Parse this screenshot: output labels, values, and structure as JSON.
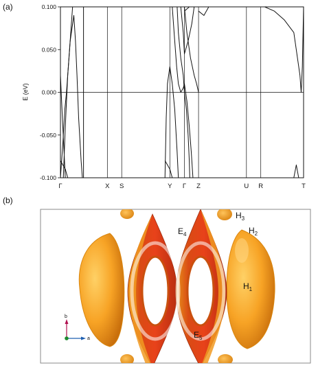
{
  "panel_a": {
    "label": "(a)",
    "chart_data": {
      "type": "line",
      "title": "",
      "ylabel": "E (eV)",
      "xlabel": "",
      "ylim": [
        -0.1,
        0.1
      ],
      "yticks": [
        0.1,
        0.05,
        0.0,
        -0.05,
        -0.1
      ],
      "ytick_labels": [
        "0.100",
        "0.050",
        "0.000",
        "-0.050",
        "-0.100"
      ],
      "xlim": [
        0,
        10
      ],
      "kpoints": [
        {
          "label": "Γ",
          "x": 0
        },
        {
          "label": "X",
          "x": 1.93
        },
        {
          "label": "S",
          "x": 2.52
        },
        {
          "label": "Y",
          "x": 4.5
        },
        {
          "label": "Γ",
          "x": 5.1
        },
        {
          "label": "Z",
          "x": 5.68
        },
        {
          "label": "U",
          "x": 7.65
        },
        {
          "label": "R",
          "x": 8.24
        },
        {
          "label": "T",
          "x": 10
        }
      ],
      "fermi_level": 0.0,
      "grid": false,
      "series": [
        {
          "values": [
            [
              0.0,
              -0.1
            ],
            [
              0.1,
              -0.06
            ],
            [
              0.18,
              -0.02
            ],
            [
              0.25,
              0.0
            ],
            [
              0.35,
              0.04
            ],
            [
              0.45,
              0.08
            ],
            [
              0.5,
              0.1
            ]
          ]
        },
        {
          "values": [
            [
              0.0,
              0.02
            ],
            [
              0.08,
              -0.03
            ],
            [
              0.15,
              -0.07
            ],
            [
              0.2,
              -0.1
            ]
          ]
        },
        {
          "values": [
            [
              0.12,
              -0.1
            ],
            [
              0.2,
              -0.04
            ],
            [
              0.3,
              0.02
            ],
            [
              0.4,
              0.06
            ],
            [
              0.55,
              0.09
            ],
            [
              0.62,
              0.06
            ],
            [
              0.68,
              0.02
            ],
            [
              0.75,
              -0.03
            ],
            [
              0.85,
              -0.08
            ],
            [
              0.9,
              -0.1
            ]
          ]
        },
        {
          "values": [
            [
              0.0,
              -0.08
            ],
            [
              0.1,
              -0.085
            ],
            [
              0.2,
              -0.09
            ],
            [
              0.3,
              -0.1
            ]
          ]
        },
        {
          "values": [
            [
              0.95,
              -0.1
            ],
            [
              0.95,
              0.1
            ]
          ]
        },
        {
          "values": [
            [
              4.3,
              -0.1
            ],
            [
              4.35,
              -0.03
            ],
            [
              4.4,
              0.01
            ],
            [
              4.5,
              0.03
            ],
            [
              4.6,
              0.01
            ],
            [
              4.7,
              -0.02
            ],
            [
              4.8,
              -0.07
            ],
            [
              4.85,
              -0.1
            ]
          ]
        },
        {
          "values": [
            [
              4.3,
              -0.08
            ],
            [
              4.4,
              -0.085
            ],
            [
              4.5,
              -0.09
            ],
            [
              4.6,
              -0.1
            ]
          ]
        },
        {
          "values": [
            [
              4.6,
              0.1
            ],
            [
              4.7,
              0.06
            ],
            [
              4.78,
              0.03
            ],
            [
              4.85,
              0.01
            ],
            [
              4.95,
              0.0
            ],
            [
              5.05,
              0.005
            ],
            [
              5.1,
              0.01
            ],
            [
              5.2,
              -0.01
            ],
            [
              5.3,
              -0.04
            ],
            [
              5.38,
              -0.07
            ],
            [
              5.45,
              -0.1
            ]
          ]
        },
        {
          "values": [
            [
              4.8,
              0.1
            ],
            [
              4.85,
              0.07
            ],
            [
              4.95,
              0.04
            ],
            [
              5.05,
              0.02
            ],
            [
              5.1,
              0.0
            ],
            [
              5.18,
              -0.02
            ],
            [
              5.25,
              -0.05
            ],
            [
              5.3,
              -0.08
            ],
            [
              5.32,
              -0.1
            ]
          ]
        },
        {
          "values": [
            [
              4.95,
              0.1
            ],
            [
              5.05,
              0.07
            ],
            [
              5.1,
              0.045
            ],
            [
              5.25,
              0.06
            ],
            [
              5.4,
              0.08
            ],
            [
              5.5,
              0.1
            ]
          ]
        },
        {
          "values": [
            [
              5.1,
              0.1
            ],
            [
              5.2,
              0.07
            ],
            [
              5.35,
              0.04
            ],
            [
              5.5,
              0.02
            ],
            [
              5.6,
              0.01
            ],
            [
              5.68,
              0.0
            ]
          ]
        },
        {
          "values": [
            [
              5.1,
              0.095
            ],
            [
              5.3,
              0.1
            ]
          ]
        },
        {
          "values": [
            [
              5.68,
              0.095
            ],
            [
              5.9,
              0.09
            ],
            [
              6.1,
              0.1
            ]
          ]
        },
        {
          "values": [
            [
              8.4,
              0.1
            ],
            [
              8.8,
              0.095
            ],
            [
              9.2,
              0.085
            ],
            [
              9.6,
              0.07
            ],
            [
              9.85,
              0.02
            ],
            [
              9.9,
              0.0
            ],
            [
              9.95,
              0.03
            ],
            [
              10.0,
              0.1
            ]
          ]
        },
        {
          "values": [
            [
              9.6,
              -0.1
            ],
            [
              9.7,
              -0.085
            ],
            [
              9.8,
              -0.1
            ]
          ]
        }
      ]
    }
  },
  "panel_b": {
    "label": "(b)",
    "pocket_labels": [
      "E4",
      "E5",
      "H1",
      "H2",
      "H3"
    ],
    "axis_labels": {
      "b": "b",
      "a": "a"
    },
    "colors": {
      "hole_pocket": "#f6a21a",
      "electron_outer": "#d93a14",
      "electron_inner": "#f05a1e",
      "frame": "#888888"
    }
  }
}
